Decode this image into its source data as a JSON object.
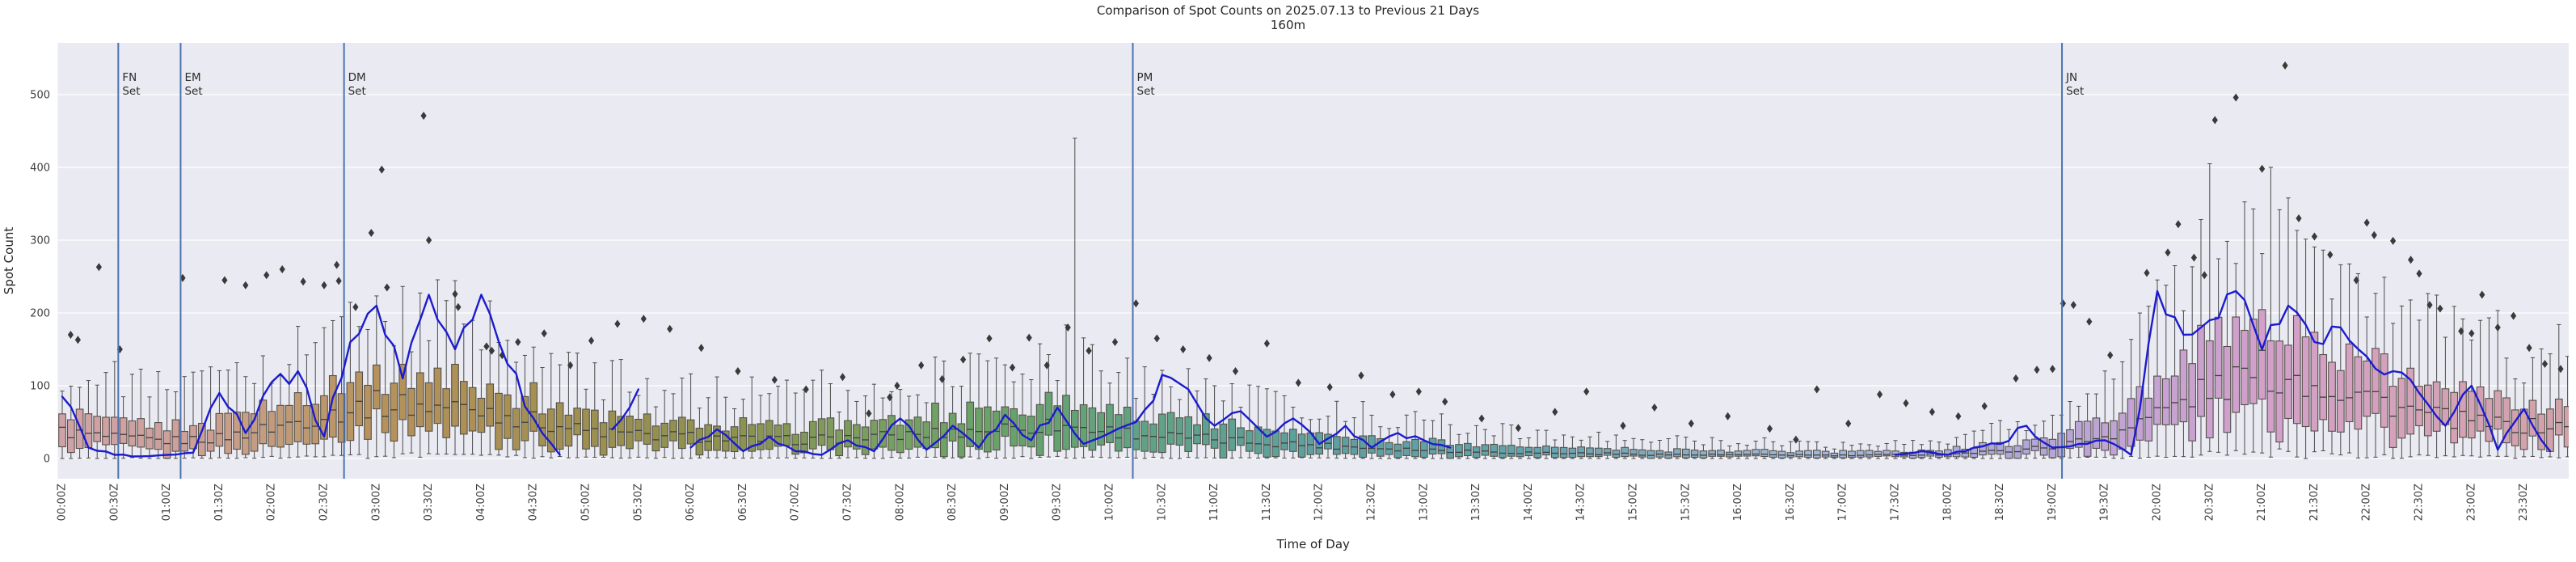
{
  "title": {
    "line1": "Comparison of Spot Counts on 2025.07.13 to Previous 21 Days",
    "line2": "160m"
  },
  "axes": {
    "x_label": "Time of Day",
    "y_label": "Spot Count",
    "y_ticks": [
      0,
      100,
      200,
      300,
      400,
      500
    ],
    "x_tick_labels": [
      "00:00Z",
      "00:30Z",
      "01:00Z",
      "01:30Z",
      "02:00Z",
      "02:30Z",
      "03:00Z",
      "03:30Z",
      "04:00Z",
      "04:30Z",
      "05:00Z",
      "05:30Z",
      "06:00Z",
      "06:30Z",
      "07:00Z",
      "07:30Z",
      "08:00Z",
      "08:30Z",
      "09:00Z",
      "09:30Z",
      "10:00Z",
      "10:30Z",
      "11:00Z",
      "11:30Z",
      "12:00Z",
      "12:30Z",
      "13:00Z",
      "13:30Z",
      "14:00Z",
      "14:30Z",
      "15:00Z",
      "15:30Z",
      "16:00Z",
      "16:30Z",
      "17:00Z",
      "17:30Z",
      "18:00Z",
      "18:30Z",
      "19:00Z",
      "19:30Z",
      "20:00Z",
      "20:30Z",
      "21:00Z",
      "21:30Z",
      "22:00Z",
      "22:30Z",
      "23:00Z",
      "23:30Z"
    ]
  },
  "events": [
    {
      "label_line1": "FN",
      "label_line2": "Set",
      "time_h": 0.535
    },
    {
      "label_line1": "EM",
      "label_line2": "Set",
      "time_h": 1.13
    },
    {
      "label_line1": "DM",
      "label_line2": "Set",
      "time_h": 2.69
    },
    {
      "label_line1": "PM",
      "label_line2": "Set",
      "time_h": 10.22
    },
    {
      "label_line1": "JN",
      "label_line2": "Set",
      "time_h": 19.09
    }
  ],
  "colors": {
    "plot_background": "#eaeaf2",
    "grid": "#ffffff",
    "today_line": "#1b1bd0",
    "event_line": "#4c72b0",
    "outlier": "#3a3a3a",
    "box_edge": "#55514b",
    "median_line": "#3f3f3f",
    "whisker": "#4a4a4a",
    "text": "#3d3d3d",
    "box_color_anchors": [
      [
        0.0,
        "#d0a2a8"
      ],
      [
        1.2,
        "#cda09a"
      ],
      [
        2.2,
        "#c09a74"
      ],
      [
        3.0,
        "#b6925c"
      ],
      [
        4.0,
        "#ab9055"
      ],
      [
        5.5,
        "#96904f"
      ],
      [
        6.5,
        "#8b9350"
      ],
      [
        8.0,
        "#75a163"
      ],
      [
        9.0,
        "#68a269"
      ],
      [
        10.5,
        "#5fa287"
      ],
      [
        12.0,
        "#5da0a0"
      ],
      [
        14.0,
        "#63a2ab"
      ],
      [
        15.3,
        "#83abc0"
      ],
      [
        16.5,
        "#a0b9da"
      ],
      [
        17.5,
        "#a9b0de"
      ],
      [
        18.7,
        "#b0a7d8"
      ],
      [
        19.8,
        "#c4a3d4"
      ],
      [
        21.0,
        "#d2a0ca"
      ],
      [
        22.5,
        "#d5a2b8"
      ],
      [
        24.0,
        "#d0a2a8"
      ]
    ]
  },
  "chart_data": {
    "type": "boxplot-with-line",
    "title": "Comparison of Spot Counts on 2025.07.13 to Previous 21 Days",
    "subtitle": "160m",
    "xlabel": "Time of Day",
    "ylabel": "Spot Count",
    "ylim": [
      -28,
      571
    ],
    "grid": "horizontal-only",
    "legend": "none",
    "interval_minutes": 5,
    "boxes_per_day": 288,
    "box_stats_30min": {
      "times_h": [
        0,
        0.5,
        1,
        1.5,
        2,
        2.5,
        3,
        3.5,
        4,
        4.5,
        5,
        5.5,
        6,
        6.5,
        7,
        7.5,
        8,
        8.5,
        9,
        9.5,
        10,
        10.5,
        11,
        11.5,
        12,
        12.5,
        13,
        13.5,
        14,
        14.5,
        15,
        15.5,
        16,
        16.5,
        17,
        17.5,
        18,
        18.5,
        19,
        19.5,
        20,
        20.5,
        21,
        21.5,
        22,
        22.5,
        23,
        23.5
      ],
      "median": [
        37,
        28,
        24,
        28,
        42,
        60,
        75,
        72,
        68,
        52,
        38,
        32,
        30,
        26,
        25,
        28,
        31,
        36,
        42,
        46,
        38,
        31,
        26,
        22,
        18,
        15,
        12,
        10,
        8,
        7,
        6,
        5,
        5,
        5,
        4,
        5,
        6,
        10,
        16,
        30,
        62,
        95,
        120,
        105,
        88,
        62,
        50,
        44
      ],
      "q1": [
        12,
        14,
        8,
        12,
        20,
        32,
        42,
        40,
        38,
        26,
        16,
        13,
        12,
        10,
        10,
        11,
        13,
        15,
        18,
        20,
        16,
        13,
        10,
        8,
        7,
        6,
        5,
        4,
        3,
        3,
        2,
        2,
        2,
        2,
        1,
        2,
        2,
        4,
        6,
        12,
        30,
        50,
        65,
        58,
        45,
        30,
        24,
        20
      ],
      "q3": [
        63,
        48,
        42,
        55,
        72,
        95,
        118,
        112,
        105,
        82,
        62,
        55,
        50,
        45,
        44,
        48,
        55,
        63,
        72,
        80,
        66,
        56,
        46,
        40,
        34,
        29,
        24,
        20,
        16,
        14,
        12,
        11,
        10,
        10,
        9,
        10,
        13,
        20,
        30,
        55,
        105,
        155,
        190,
        170,
        140,
        102,
        85,
        75
      ],
      "whisker_low": [
        0,
        2,
        0,
        2,
        3,
        5,
        8,
        8,
        6,
        4,
        2,
        2,
        1,
        1,
        1,
        1,
        2,
        2,
        3,
        3,
        2,
        2,
        1,
        1,
        1,
        0,
        0,
        0,
        0,
        0,
        0,
        0,
        0,
        0,
        0,
        0,
        0,
        0,
        1,
        2,
        5,
        10,
        15,
        12,
        8,
        5,
        4,
        3
      ],
      "whisker_high": [
        115,
        105,
        95,
        125,
        150,
        180,
        210,
        205,
        190,
        155,
        120,
        110,
        100,
        92,
        90,
        98,
        110,
        125,
        140,
        155,
        130,
        112,
        95,
        84,
        72,
        62,
        52,
        44,
        36,
        31,
        27,
        24,
        23,
        22,
        20,
        22,
        28,
        42,
        62,
        110,
        205,
        290,
        350,
        315,
        265,
        200,
        170,
        150
      ]
    },
    "today_line_15min": {
      "start_h": 0,
      "step_h": 0.25,
      "values": [
        85,
        15,
        5,
        3,
        5,
        8,
        90,
        35,
        105,
        120,
        30,
        160,
        210,
        110,
        225,
        150,
        225,
        130,
        55,
        5,
        null,
        40,
        95,
        null,
        15,
        40,
        10,
        30,
        10,
        5,
        25,
        10,
        55,
        12,
        45,
        15,
        60,
        25,
        70,
        20,
        35,
        50,
        115,
        95,
        45,
        65,
        30,
        55,
        20,
        45,
        15,
        35,
        25,
        15,
        null,
        5,
        null,
        8,
        null,
        5,
        null,
        null,
        5,
        null,
        5,
        null,
        8,
        null,
        5,
        null,
        5,
        10,
        5,
        15,
        20,
        45,
        15,
        20,
        25,
        5,
        230,
        170,
        190,
        230,
        150,
        210,
        160,
        180,
        140,
        120,
        90,
        45,
        100,
        12,
        68,
        10
      ]
    },
    "outliers_h_value": [
      [
        0.08,
        170
      ],
      [
        0.15,
        163
      ],
      [
        0.35,
        263
      ],
      [
        0.55,
        150
      ],
      [
        1.15,
        248
      ],
      [
        1.55,
        245
      ],
      [
        1.75,
        238
      ],
      [
        1.95,
        252
      ],
      [
        2.1,
        260
      ],
      [
        2.3,
        243
      ],
      [
        2.5,
        238
      ],
      [
        2.62,
        266
      ],
      [
        2.64,
        244
      ],
      [
        2.8,
        208
      ],
      [
        2.95,
        310
      ],
      [
        3.05,
        397
      ],
      [
        3.1,
        235
      ],
      [
        3.45,
        471
      ],
      [
        3.5,
        300
      ],
      [
        3.75,
        226
      ],
      [
        3.78,
        208
      ],
      [
        4.05,
        154
      ],
      [
        4.1,
        148
      ],
      [
        4.2,
        142
      ],
      [
        4.35,
        160
      ],
      [
        4.6,
        172
      ],
      [
        4.85,
        128
      ],
      [
        5.05,
        162
      ],
      [
        5.3,
        185
      ],
      [
        5.55,
        192
      ],
      [
        5.8,
        178
      ],
      [
        6.1,
        152
      ],
      [
        6.45,
        120
      ],
      [
        6.8,
        108
      ],
      [
        7.1,
        95
      ],
      [
        7.45,
        112
      ],
      [
        7.7,
        62
      ],
      [
        7.9,
        84
      ],
      [
        7.97,
        100
      ],
      [
        8.2,
        128
      ],
      [
        8.4,
        109
      ],
      [
        8.6,
        136
      ],
      [
        8.85,
        165
      ],
      [
        9.07,
        125
      ],
      [
        9.23,
        166
      ],
      [
        9.4,
        128
      ],
      [
        9.6,
        180
      ],
      [
        9.8,
        148
      ],
      [
        10.05,
        160
      ],
      [
        10.25,
        213
      ],
      [
        10.45,
        165
      ],
      [
        10.7,
        150
      ],
      [
        10.95,
        138
      ],
      [
        11.2,
        120
      ],
      [
        11.5,
        158
      ],
      [
        11.8,
        104
      ],
      [
        12.1,
        98
      ],
      [
        12.4,
        114
      ],
      [
        12.7,
        88
      ],
      [
        12.95,
        92
      ],
      [
        13.2,
        78
      ],
      [
        13.55,
        55
      ],
      [
        13.9,
        42
      ],
      [
        14.25,
        64
      ],
      [
        14.55,
        92
      ],
      [
        14.9,
        45
      ],
      [
        15.2,
        70
      ],
      [
        15.55,
        48
      ],
      [
        15.9,
        58
      ],
      [
        16.3,
        41
      ],
      [
        16.55,
        26
      ],
      [
        16.75,
        95
      ],
      [
        17.05,
        48
      ],
      [
        17.35,
        88
      ],
      [
        17.6,
        76
      ],
      [
        17.85,
        64
      ],
      [
        18.1,
        58
      ],
      [
        18.35,
        72
      ],
      [
        18.65,
        110
      ],
      [
        18.85,
        122
      ],
      [
        19.0,
        123
      ],
      [
        19.1,
        213
      ],
      [
        19.2,
        211
      ],
      [
        19.35,
        188
      ],
      [
        19.55,
        142
      ],
      [
        19.9,
        255
      ],
      [
        20.1,
        283
      ],
      [
        20.2,
        322
      ],
      [
        20.35,
        276
      ],
      [
        20.45,
        252
      ],
      [
        20.55,
        465
      ],
      [
        20.75,
        496
      ],
      [
        21.0,
        398
      ],
      [
        21.22,
        540
      ],
      [
        21.35,
        330
      ],
      [
        21.5,
        305
      ],
      [
        21.65,
        280
      ],
      [
        21.9,
        245
      ],
      [
        22.0,
        324
      ],
      [
        22.07,
        307
      ],
      [
        22.25,
        299
      ],
      [
        22.42,
        273
      ],
      [
        22.5,
        254
      ],
      [
        22.6,
        211
      ],
      [
        22.7,
        206
      ],
      [
        22.9,
        175
      ],
      [
        23.0,
        172
      ],
      [
        23.1,
        225
      ],
      [
        23.25,
        180
      ],
      [
        23.4,
        196
      ],
      [
        23.55,
        152
      ],
      [
        23.7,
        130
      ],
      [
        23.85,
        123
      ]
    ],
    "whisker_spikes_h_value": [
      [
        9.65,
        440
      ],
      [
        20.52,
        405
      ],
      [
        21.1,
        400
      ]
    ]
  }
}
